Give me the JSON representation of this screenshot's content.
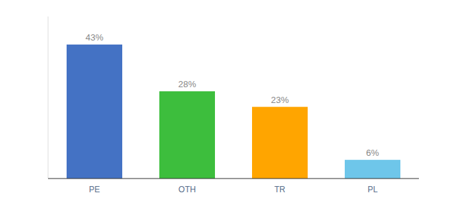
{
  "chart_data": {
    "type": "bar",
    "categories": [
      "PE",
      "OTH",
      "TR",
      "PL"
    ],
    "values": [
      43,
      28,
      23,
      6
    ],
    "value_labels": [
      "43%",
      "28%",
      "23%",
      "6%"
    ],
    "colors": [
      "#4472C4",
      "#3DBE3D",
      "#FFA500",
      "#6EC6EA"
    ],
    "ylim": [
      0,
      52
    ],
    "data_labels": true,
    "tick_labels": "x",
    "grid": false
  }
}
